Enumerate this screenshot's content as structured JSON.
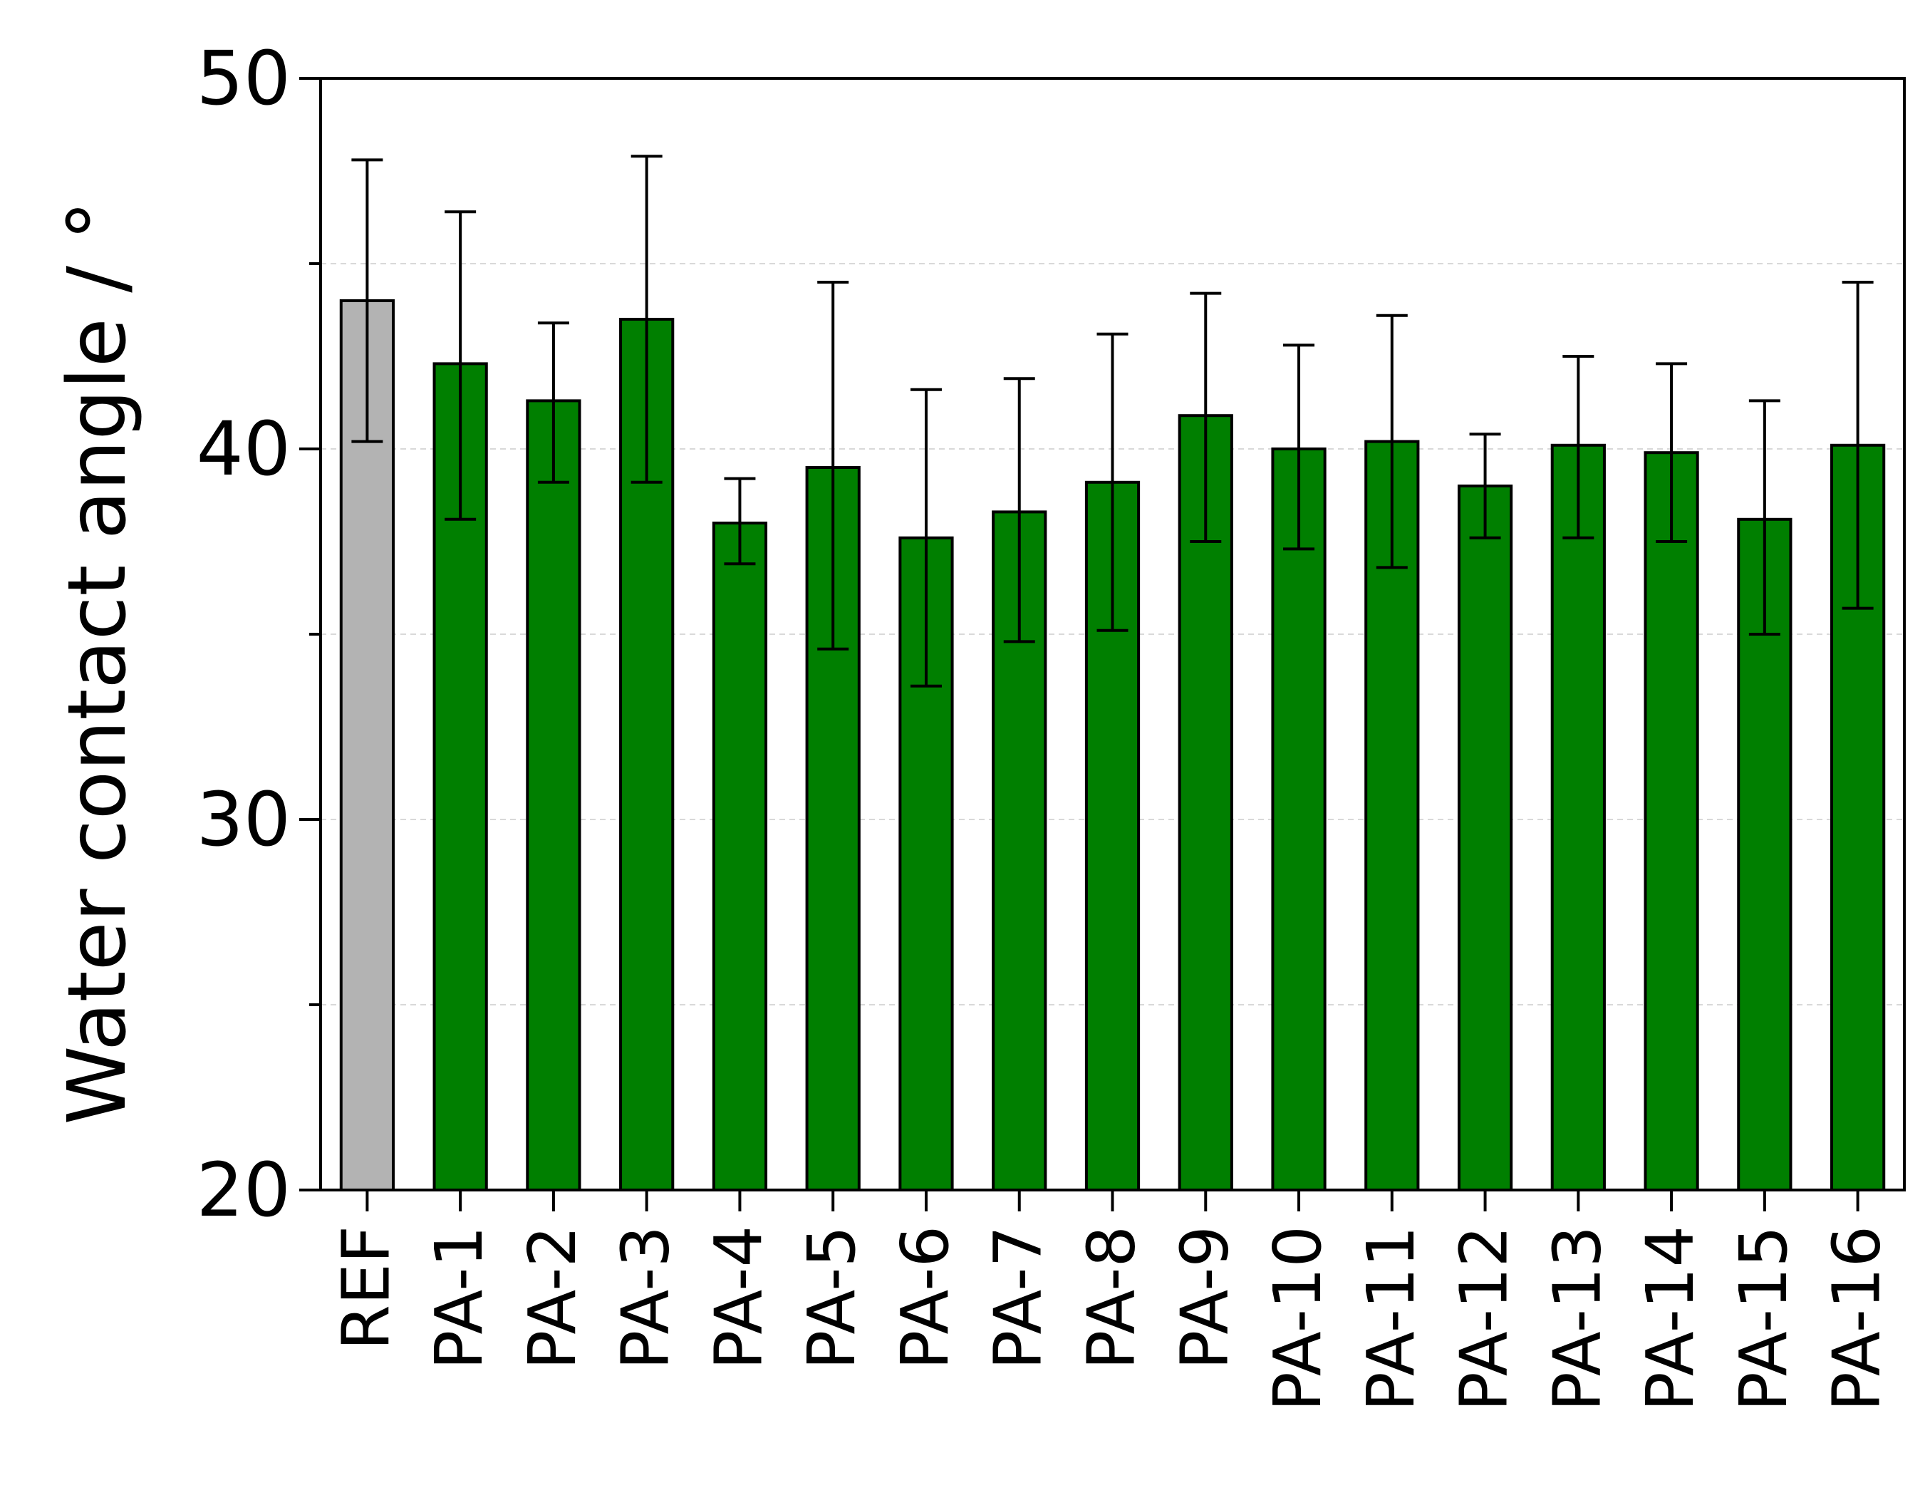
{
  "chart_data": {
    "type": "bar",
    "title": "",
    "xlabel": "",
    "ylabel": "Water contact angle / °",
    "ylim": [
      20,
      50
    ],
    "yticks": [
      "20",
      "30",
      "40",
      "50"
    ],
    "grid": true,
    "categories": [
      "REF",
      "PA-1",
      "PA-2",
      "PA-3",
      "PA-4",
      "PA-5",
      "PA-6",
      "PA-7",
      "PA-8",
      "PA-9",
      "PA-10",
      "PA-11",
      "PA-12",
      "PA-13",
      "PA-14",
      "PA-15",
      "PA-16"
    ],
    "values": [
      44.0,
      42.3,
      41.3,
      43.5,
      38.0,
      39.5,
      37.6,
      38.3,
      39.1,
      40.9,
      40.0,
      40.2,
      39.0,
      40.1,
      39.9,
      38.1,
      40.1
    ],
    "error_low": [
      40.2,
      38.1,
      39.1,
      39.1,
      36.9,
      34.6,
      33.6,
      34.8,
      35.1,
      37.5,
      37.3,
      36.8,
      37.6,
      37.6,
      37.5,
      35.0,
      35.7
    ],
    "error_high": [
      47.8,
      46.4,
      43.4,
      47.9,
      39.2,
      44.5,
      41.6,
      41.9,
      43.1,
      44.2,
      42.8,
      43.6,
      40.4,
      42.5,
      42.3,
      41.3,
      44.5
    ],
    "colors": {
      "reference": "#b3b3b3",
      "samples": "#007f00",
      "outline": "#000000",
      "grid": "#d9d9d9"
    }
  }
}
